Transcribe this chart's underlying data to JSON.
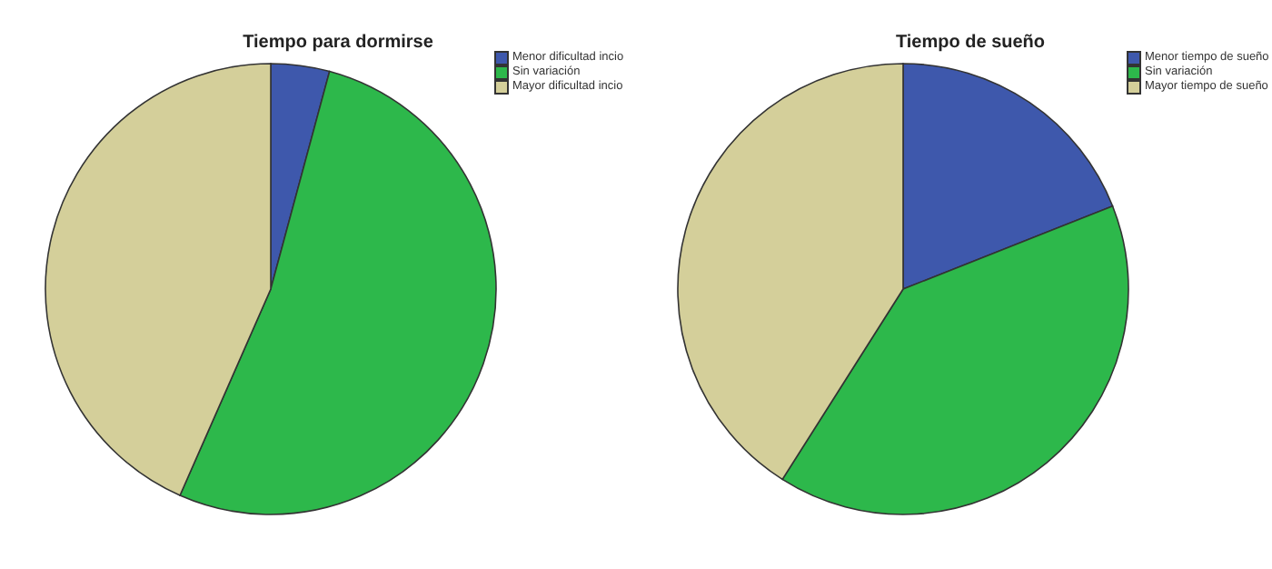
{
  "chart_data": [
    {
      "type": "pie",
      "title": "Tiempo para dormirse",
      "categories": [
        "Menor dificultad incio",
        "Sin variación",
        "Mayor dificultad incio"
      ],
      "values": [
        4.2,
        52.4,
        43.4
      ],
      "colors": [
        "#3e58ac",
        "#2db84b",
        "#d4cf9a"
      ],
      "legend": "top right"
    },
    {
      "type": "pie",
      "title": "Tiempo de sueño",
      "categories": [
        "Menor tiempo de sueño",
        "Sin variación",
        "Mayor tiempo de sueño"
      ],
      "values": [
        19,
        40,
        41
      ],
      "colors": [
        "#3e58ac",
        "#2db84b",
        "#d4cf9a"
      ],
      "legend": "top right"
    }
  ]
}
